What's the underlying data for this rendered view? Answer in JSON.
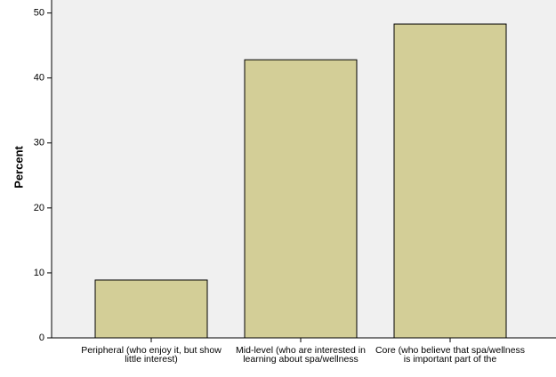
{
  "chart_data": {
    "type": "bar",
    "y_label": "Percent",
    "categories": [
      "Peripheral (who enjoy it, but show little interest)",
      "Mid-level (who are interested in learning about spa/wellness",
      "Core (who believe that spa/wellness is important part of the"
    ],
    "values": [
      8.9,
      42.8,
      48.3
    ],
    "color": "#d3ce97",
    "ylim": [
      0,
      52
    ],
    "yticks": [
      0,
      10,
      20,
      30,
      40,
      50
    ]
  }
}
